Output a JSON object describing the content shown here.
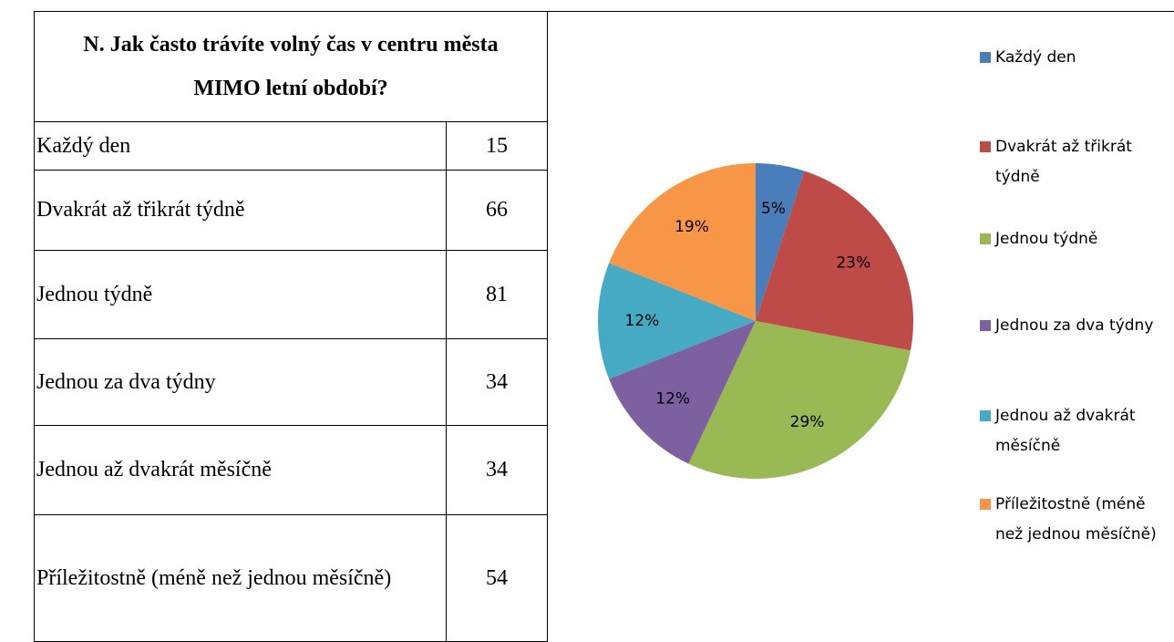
{
  "table": {
    "title": "N. Jak často trávíte volný čas v centru města MIMO letní období?",
    "rows": [
      [
        "Každý den",
        "15"
      ],
      [
        "Dvakrát až třikrát týdně",
        "66"
      ],
      [
        "Jednou týdně",
        "81"
      ],
      [
        "Jednou za dva týdny",
        "34"
      ],
      [
        "Jednou až dvakrát měsíčně",
        "34"
      ],
      [
        "Příležitostně (méně než jednou měsíčně)",
        "54"
      ]
    ]
  },
  "chart_data": {
    "type": "pie",
    "categories": [
      "Každý den",
      "Dvakrát až třikrát týdně",
      "Jednou týdně",
      "Jednou za dva týdny",
      "Jednou až dvakrát měsíčně",
      "Příležitostně (méně než jednou měsíčně)"
    ],
    "values": [
      5,
      23,
      29,
      12,
      12,
      19
    ],
    "value_labels": [
      "5%",
      "23%",
      "29%",
      "12%",
      "12%",
      "19%"
    ],
    "colors": [
      "#4a7ebb",
      "#be4b48",
      "#98b954",
      "#7d60a0",
      "#46aac5",
      "#f79646"
    ]
  }
}
